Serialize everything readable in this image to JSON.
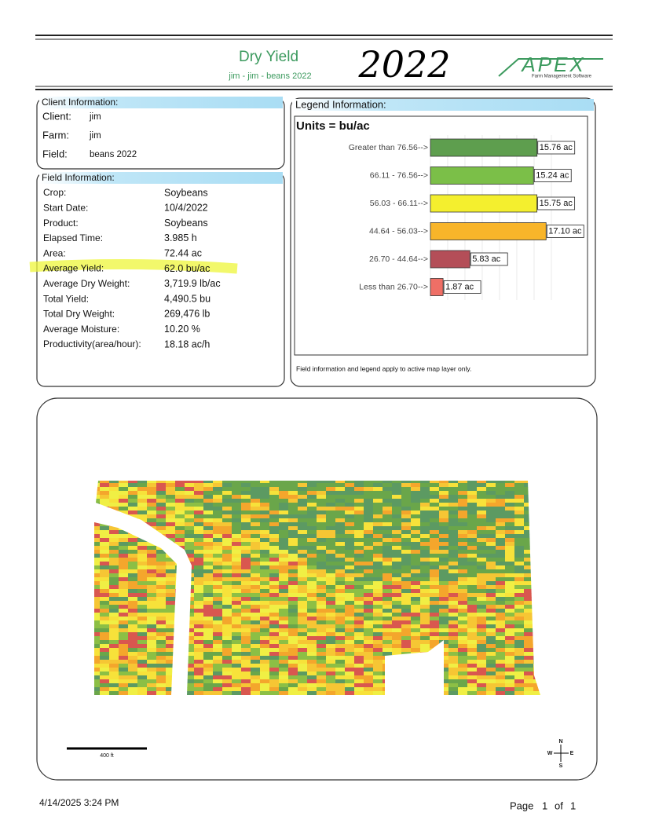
{
  "header": {
    "title": "Dry Yield",
    "subtitle": "jim - jim - beans 2022",
    "handwritten": "2022",
    "logo": "APEX",
    "logo_tagline": "Farm Management Software"
  },
  "client": {
    "heading": "Client Information:",
    "rows": [
      [
        "Client:",
        "jim"
      ],
      [
        "Farm:",
        "jim"
      ],
      [
        "Field:",
        "beans 2022"
      ]
    ]
  },
  "field": {
    "heading": "Field Information:",
    "rows": [
      [
        "Crop:",
        "Soybeans"
      ],
      [
        "Start Date:",
        "10/4/2022"
      ],
      [
        "Product:",
        "Soybeans"
      ],
      [
        "Elapsed Time:",
        "3.985 h"
      ],
      [
        "Area:",
        "72.44 ac"
      ],
      [
        "Average Yield:",
        "62.0 bu/ac"
      ],
      [
        "Average Dry Weight:",
        "3,719.9 lb/ac"
      ],
      [
        "Total Yield:",
        "4,490.5 bu"
      ],
      [
        "Total Dry Weight:",
        "269,476 lb"
      ],
      [
        "Average Moisture:",
        "10.20 %"
      ],
      [
        "Productivity(area/hour):",
        "18.18 ac/h"
      ]
    ]
  },
  "legend": {
    "heading": "Legend Information:",
    "note": "Field information and legend apply to active map layer only.",
    "chart_data": {
      "type": "bar",
      "orientation": "horizontal",
      "title": "Units = bu/ac",
      "categories": [
        "Greater than 76.56-->",
        "66.11 - 76.56-->",
        "56.03 - 66.11-->",
        "44.64 - 56.03-->",
        "26.70 - 44.64-->",
        "Less than 26.70-->"
      ],
      "values": [
        15.76,
        15.24,
        15.75,
        17.1,
        5.83,
        1.87
      ],
      "value_labels": [
        "15.76 ac",
        "15.24 ac",
        "15.75 ac",
        "17.10 ac",
        "5.83 ac",
        "1.87 ac"
      ],
      "colors": [
        "#5e9e4e",
        "#7bbf48",
        "#f4ef2e",
        "#f8b52a",
        "#b44e58",
        "#ef6f66"
      ],
      "xlim": [
        0,
        18
      ]
    }
  },
  "map": {
    "scale_label": "400 ft",
    "compass": {
      "n": "N",
      "s": "S",
      "e": "E",
      "w": "W"
    }
  },
  "footer": {
    "timestamp": "4/14/2025 3:24 PM",
    "page_word": "Page",
    "page": "1",
    "of_word": "of",
    "pages": "1"
  }
}
